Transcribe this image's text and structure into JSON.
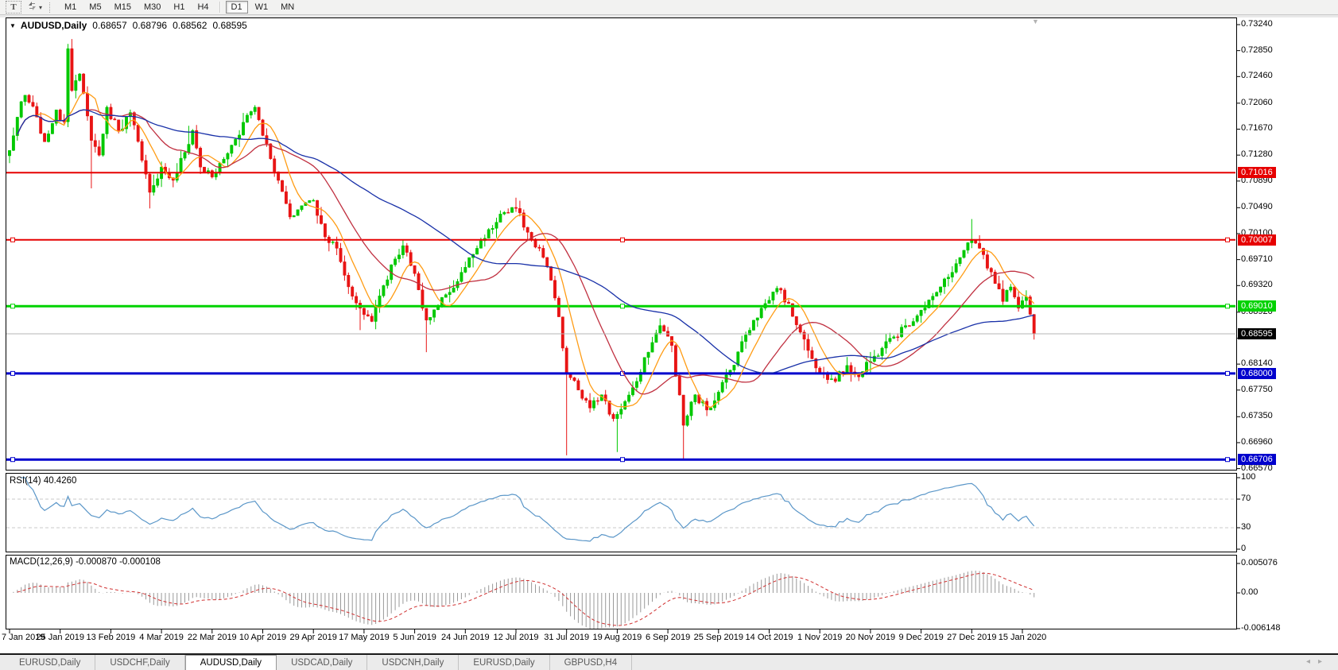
{
  "icons": {
    "collapse_triangle": "▼",
    "scroll_anchor_triangle": "▼",
    "dropdown_caret": "▾",
    "tab_scroll_left": "◂",
    "tab_scroll_right": "▸"
  },
  "toolbar": {
    "text_tool_label": "T",
    "timeframes": [
      "M1",
      "M5",
      "M15",
      "M30",
      "H1",
      "H4",
      "D1",
      "W1",
      "MN"
    ],
    "active_timeframe": "D1"
  },
  "chart": {
    "symbol_label": "AUDUSD,Daily",
    "open": "0.68657",
    "high": "0.68796",
    "low": "0.68562",
    "close": "0.68595",
    "price_axis_ticks": [
      "0.73240",
      "0.72850",
      "0.72460",
      "0.72060",
      "0.71670",
      "0.71280",
      "0.70890",
      "0.70490",
      "0.70100",
      "0.69710",
      "0.69320",
      "0.68920",
      "0.68530",
      "0.68140",
      "0.67750",
      "0.67350",
      "0.66960",
      "0.66570"
    ],
    "hlines": [
      {
        "price": 0.71016,
        "label": "0.71016",
        "color": "#e60000",
        "width": 2,
        "selected": false
      },
      {
        "price": 0.70007,
        "label": "0.70007",
        "color": "#e60000",
        "width": 2,
        "selected": true
      },
      {
        "price": 0.6901,
        "label": "0.69010",
        "color": "#00d200",
        "width": 3,
        "selected": true
      },
      {
        "price": 0.68,
        "label": "0.68000",
        "color": "#0000cd",
        "width": 3,
        "selected": true
      },
      {
        "price": 0.66706,
        "label": "0.66706",
        "color": "#0000cd",
        "width": 3,
        "selected": true
      }
    ],
    "current_price": {
      "value": 0.68595,
      "label": "0.68595",
      "line_color": "#b4b4b4",
      "label_bg": "#000000"
    },
    "date_axis": [
      "7 Jan 2019",
      "25 Jan 2019",
      "13 Feb 2019",
      "4 Mar 2019",
      "22 Mar 2019",
      "10 Apr 2019",
      "29 Apr 2019",
      "17 May 2019",
      "5 Jun 2019",
      "24 Jun 2019",
      "12 Jul 2019",
      "31 Jul 2019",
      "19 Aug 2019",
      "6 Sep 2019",
      "25 Sep 2019",
      "14 Oct 2019",
      "1 Nov 2019",
      "20 Nov 2019",
      "9 Dec 2019",
      "27 Dec 2019",
      "15 Jan 2020"
    ]
  },
  "chart_data": {
    "type": "candlestick",
    "symbol": "AUDUSD",
    "period": "Daily",
    "candle_count": 264,
    "price_range": [
      0.665,
      0.733
    ],
    "close_anchors": [
      [
        0,
        0.7135
      ],
      [
        2,
        0.7185
      ],
      [
        4,
        0.7218
      ],
      [
        7,
        0.7185
      ],
      [
        9,
        0.7148
      ],
      [
        12,
        0.7196
      ],
      [
        14,
        0.7178
      ],
      [
        15,
        0.7288
      ],
      [
        16,
        0.7225
      ],
      [
        18,
        0.725
      ],
      [
        21,
        0.715
      ],
      [
        23,
        0.7128
      ],
      [
        25,
        0.72
      ],
      [
        28,
        0.7165
      ],
      [
        31,
        0.7192
      ],
      [
        34,
        0.712
      ],
      [
        36,
        0.7072
      ],
      [
        39,
        0.711
      ],
      [
        42,
        0.709
      ],
      [
        45,
        0.7132
      ],
      [
        47,
        0.7165
      ],
      [
        49,
        0.711
      ],
      [
        52,
        0.7095
      ],
      [
        55,
        0.7122
      ],
      [
        58,
        0.7152
      ],
      [
        61,
        0.7188
      ],
      [
        63,
        0.72
      ],
      [
        66,
        0.7145
      ],
      [
        69,
        0.709
      ],
      [
        72,
        0.7035
      ],
      [
        75,
        0.7052
      ],
      [
        78,
        0.706
      ],
      [
        81,
        0.7005
      ],
      [
        84,
        0.6988
      ],
      [
        87,
        0.693
      ],
      [
        90,
        0.6898
      ],
      [
        93,
        0.6878
      ],
      [
        96,
        0.6932
      ],
      [
        99,
        0.6972
      ],
      [
        101,
        0.6992
      ],
      [
        104,
        0.695
      ],
      [
        107,
        0.688
      ],
      [
        110,
        0.6902
      ],
      [
        113,
        0.6922
      ],
      [
        116,
        0.6952
      ],
      [
        120,
        0.6988
      ],
      [
        124,
        0.7018
      ],
      [
        127,
        0.7042
      ],
      [
        130,
        0.7048
      ],
      [
        133,
        0.7012
      ],
      [
        136,
        0.6988
      ],
      [
        139,
        0.694
      ],
      [
        141,
        0.6885
      ],
      [
        143,
        0.68
      ],
      [
        146,
        0.6775
      ],
      [
        149,
        0.6748
      ],
      [
        152,
        0.6768
      ],
      [
        155,
        0.6732
      ],
      [
        158,
        0.6758
      ],
      [
        161,
        0.6788
      ],
      [
        164,
        0.6832
      ],
      [
        167,
        0.6872
      ],
      [
        170,
        0.6842
      ],
      [
        173,
        0.6722
      ],
      [
        176,
        0.6768
      ],
      [
        179,
        0.6745
      ],
      [
        182,
        0.6772
      ],
      [
        185,
        0.6805
      ],
      [
        188,
        0.6848
      ],
      [
        191,
        0.688
      ],
      [
        194,
        0.6905
      ],
      [
        197,
        0.6928
      ],
      [
        200,
        0.6905
      ],
      [
        203,
        0.6862
      ],
      [
        206,
        0.6822
      ],
      [
        209,
        0.68
      ],
      [
        212,
        0.6788
      ],
      [
        215,
        0.6812
      ],
      [
        218,
        0.6795
      ],
      [
        221,
        0.6818
      ],
      [
        224,
        0.6838
      ],
      [
        227,
        0.6855
      ],
      [
        230,
        0.6872
      ],
      [
        234,
        0.6895
      ],
      [
        238,
        0.6922
      ],
      [
        242,
        0.6952
      ],
      [
        245,
        0.6985
      ],
      [
        247,
        0.7
      ],
      [
        249,
        0.6988
      ],
      [
        251,
        0.6958
      ],
      [
        253,
        0.6935
      ],
      [
        255,
        0.6908
      ],
      [
        257,
        0.693
      ],
      [
        259,
        0.6898
      ],
      [
        261,
        0.6915
      ],
      [
        263,
        0.68595
      ]
    ],
    "wick_events": [
      {
        "i": 15,
        "high": 0.7295
      },
      {
        "i": 21,
        "low": 0.7078
      },
      {
        "i": 36,
        "low": 0.7048
      },
      {
        "i": 46,
        "high": 0.7172
      },
      {
        "i": 90,
        "low": 0.6865
      },
      {
        "i": 107,
        "low": 0.6832
      },
      {
        "i": 130,
        "high": 0.7064
      },
      {
        "i": 143,
        "low": 0.6677
      },
      {
        "i": 156,
        "low": 0.6682
      },
      {
        "i": 173,
        "low": 0.6672
      },
      {
        "i": 247,
        "high": 0.7032
      }
    ],
    "moving_averages": [
      {
        "name": "ma-fast",
        "window": 8,
        "color": "#ff9c14"
      },
      {
        "name": "ma-mid",
        "window": 21,
        "color": "#c03040"
      },
      {
        "name": "ma-slow",
        "window": 55,
        "color": "#1830a8"
      }
    ],
    "up_color": "#00c800",
    "down_color": "#e81414"
  },
  "rsi": {
    "label": "RSI(14) 40.4260",
    "period": "14",
    "value": "40.4260",
    "axis_ticks": [
      "100",
      "70",
      "30",
      "0"
    ],
    "levels": [
      70,
      30
    ],
    "line_color": "#5a96c8",
    "level_color": "#c8c8c8"
  },
  "macd": {
    "label": "MACD(12,26,9) -0.000870 -0.000108",
    "params": "12,26,9",
    "main_value": "-0.000870",
    "signal_value": "-0.000108",
    "axis_ticks": [
      "0.005076",
      "0.00",
      "-0.006148"
    ],
    "hist_color": "#999999",
    "signal_color": "#d03030"
  },
  "tabs": {
    "items": [
      {
        "label": "EURUSD,Daily",
        "active": false
      },
      {
        "label": "USDCHF,Daily",
        "active": false
      },
      {
        "label": "AUDUSD,Daily",
        "active": true
      },
      {
        "label": "USDCAD,Daily",
        "active": false
      },
      {
        "label": "USDCNH,Daily",
        "active": false
      },
      {
        "label": "EURUSD,Daily",
        "active": false
      },
      {
        "label": "GBPUSD,H4",
        "active": false
      }
    ]
  }
}
